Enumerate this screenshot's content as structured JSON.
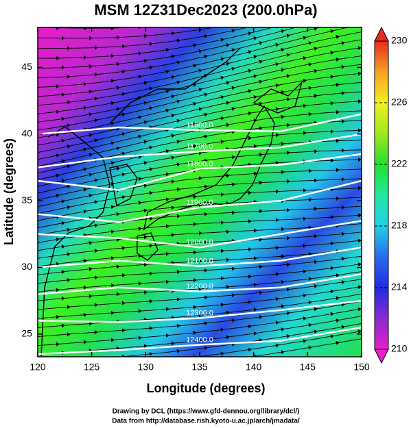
{
  "chart_data": {
    "type": "contour-map",
    "title": "MSM 12Z31Dec2023 (200.0hPa)",
    "x_label": "Longitude (degrees)",
    "y_label": "Latitude  (degrees)",
    "xlim": [
      120,
      150
    ],
    "ylim": [
      23.3,
      48
    ],
    "xticks": [
      120,
      125,
      130,
      135,
      140,
      145,
      150
    ],
    "yticks": [
      25,
      30,
      35,
      40,
      45
    ],
    "contour_lons": [
      120,
      127.5,
      135,
      142.5,
      150
    ],
    "contours": [
      {
        "value": 11600,
        "label": "11600.0",
        "y": [
          40,
          40.5,
          40.3,
          40.2,
          41.5
        ]
      },
      {
        "value": 11700,
        "label": "11700.0",
        "y": [
          37.5,
          38.3,
          38.7,
          39,
          40
        ]
      },
      {
        "value": 11800,
        "label": "11800.0",
        "y": [
          36.5,
          35.8,
          37.4,
          37.7,
          38.5
        ]
      },
      {
        "value": 11900,
        "label": "11900.0",
        "y": [
          34,
          33.4,
          34.5,
          35,
          36.5
        ]
      },
      {
        "value": 12000,
        "label": "12000.0",
        "y": [
          32.5,
          32.2,
          31.5,
          32.5,
          33.5
        ]
      },
      {
        "value": 12100,
        "label": "12100.0",
        "y": [
          30,
          30.5,
          30.1,
          30.5,
          31.5
        ]
      },
      {
        "value": 12200,
        "label": "12200.0",
        "y": [
          28,
          28.5,
          28.2,
          28.5,
          29.5
        ]
      },
      {
        "value": 12300,
        "label": "12300.0",
        "y": [
          26,
          25.9,
          26.2,
          26.8,
          27.5
        ]
      },
      {
        "value": 12400,
        "label": "12400.0",
        "y": [
          23.5,
          23.8,
          24.2,
          24.5,
          25.5
        ]
      }
    ],
    "colorbar": {
      "lim": [
        210,
        230
      ],
      "ticks": [
        210,
        214,
        218,
        222,
        226,
        230
      ],
      "colors": [
        "#e81ec8",
        "#8a2ad0",
        "#1e2ce0",
        "#2a6cf0",
        "#20d0e8",
        "#22e8a0",
        "#22e02c",
        "#a0e820",
        "#f0f020",
        "#f8a020",
        "#e82a20"
      ]
    },
    "footer": [
      "Drawing by DCL (https://www.gfd-dennou.org/library/dcl/)",
      "Data from http://database.rish.kyoto-u.ac.jp/arch/jmadata/"
    ]
  }
}
